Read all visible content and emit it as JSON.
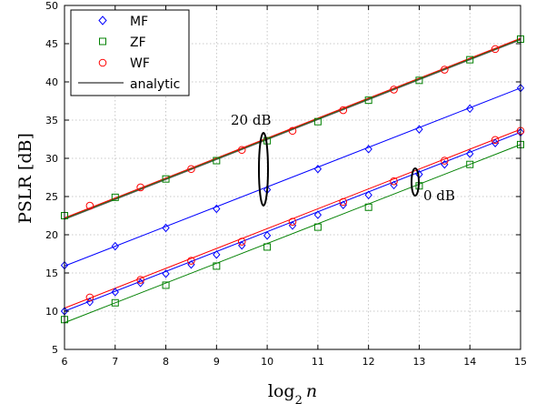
{
  "chart_data": {
    "type": "line",
    "title": "",
    "xlabel": "log₂ n",
    "xlabel_base": "log",
    "xlabel_sub": "2",
    "xlabel_var": "n",
    "ylabel": "PSLR [dB]",
    "xlim": [
      6,
      15
    ],
    "ylim": [
      5,
      50
    ],
    "xticks": [
      6,
      7,
      8,
      9,
      10,
      11,
      12,
      13,
      14,
      15
    ],
    "yticks": [
      5,
      10,
      15,
      20,
      25,
      30,
      35,
      40,
      45,
      50
    ],
    "grid": true,
    "legend_position": "top-left",
    "legend": [
      {
        "label": "MF",
        "color": "#0000ff",
        "marker": "diamond"
      },
      {
        "label": "ZF",
        "color": "#008000",
        "marker": "square"
      },
      {
        "label": "WF",
        "color": "#ff0000",
        "marker": "circle"
      },
      {
        "label": "analytic",
        "color": "#000000",
        "marker": "line"
      }
    ],
    "annotations": [
      {
        "text": "20 dB",
        "x": 9.5,
        "y": 36.5
      },
      {
        "text": "0 dB",
        "x": 13.4,
        "y": 25.0
      }
    ],
    "series": [
      {
        "group": "20 dB",
        "estimator": "MF",
        "color": "#0000ff",
        "marker": "diamond",
        "x": [
          6,
          7,
          8,
          9,
          10,
          11,
          12,
          13,
          14,
          15
        ],
        "y": [
          16.0,
          18.5,
          20.9,
          23.4,
          25.9,
          28.6,
          31.2,
          33.8,
          36.5,
          39.2
        ]
      },
      {
        "group": "20 dB",
        "estimator": "ZF",
        "color": "#008000",
        "marker": "square",
        "x": [
          6,
          7,
          8,
          9,
          10,
          11,
          12,
          13,
          14,
          15
        ],
        "y": [
          22.5,
          24.9,
          27.3,
          29.7,
          32.3,
          34.8,
          37.6,
          40.2,
          42.9,
          45.6
        ]
      },
      {
        "group": "20 dB",
        "estimator": "WF",
        "color": "#ff0000",
        "marker": "circle",
        "x": [
          6.5,
          7.5,
          8.5,
          9.5,
          10.5,
          11.5,
          12.5,
          13.5,
          14.5
        ],
        "y": [
          23.8,
          26.2,
          28.6,
          31.1,
          33.6,
          36.3,
          39.0,
          41.6,
          44.3
        ]
      },
      {
        "group": "0 dB",
        "estimator": "MF",
        "color": "#0000ff",
        "marker": "diamond",
        "x": [
          6,
          6.5,
          7,
          7.5,
          8,
          8.5,
          9,
          9.5,
          10,
          10.5,
          11,
          11.5,
          12,
          12.5,
          13,
          13.5,
          14,
          14.5,
          15
        ],
        "y": [
          10.0,
          11.2,
          12.5,
          13.7,
          14.9,
          16.1,
          17.4,
          18.6,
          19.9,
          21.2,
          22.6,
          23.9,
          25.2,
          26.5,
          27.9,
          29.2,
          30.6,
          32.0,
          33.4
        ]
      },
      {
        "group": "0 dB",
        "estimator": "ZF",
        "color": "#008000",
        "marker": "square",
        "x": [
          6,
          7,
          8,
          9,
          10,
          11,
          12,
          13,
          14,
          15
        ],
        "y": [
          8.9,
          11.1,
          13.4,
          15.9,
          18.4,
          21.0,
          23.6,
          26.4,
          29.2,
          31.8
        ]
      },
      {
        "group": "0 dB",
        "estimator": "WF",
        "color": "#ff0000",
        "marker": "circle",
        "x": [
          6.5,
          7.5,
          8.5,
          9.5,
          10.5,
          11.5,
          12.5,
          13.5,
          14.5,
          15
        ],
        "y": [
          11.8,
          14.1,
          16.6,
          19.1,
          21.7,
          24.3,
          27.0,
          29.7,
          32.4,
          33.6
        ]
      }
    ],
    "analytic_lines": [
      {
        "group": "20 dB",
        "estimator": "MF",
        "color": "#0000ff",
        "x": [
          6,
          15
        ],
        "y": [
          15.9,
          39.2
        ]
      },
      {
        "group": "20 dB",
        "estimator": "ZF",
        "color": "#008000",
        "x": [
          6,
          15
        ],
        "y": [
          22.1,
          45.6
        ]
      },
      {
        "group": "20 dB",
        "estimator": "WF",
        "color": "#ff0000",
        "x": [
          6,
          15
        ],
        "y": [
          22.2,
          45.7
        ]
      },
      {
        "group": "20 dB",
        "estimator": "analytic",
        "color": "#555555",
        "x": [
          6,
          15
        ],
        "y": [
          22.0,
          45.5
        ]
      },
      {
        "group": "0 dB",
        "estimator": "MF",
        "color": "#0000ff",
        "x": [
          6,
          15
        ],
        "y": [
          10.0,
          33.4
        ]
      },
      {
        "group": "0 dB",
        "estimator": "ZF",
        "color": "#008000",
        "x": [
          6,
          15
        ],
        "y": [
          8.5,
          31.8
        ]
      },
      {
        "group": "0 dB",
        "estimator": "WF",
        "color": "#ff0000",
        "x": [
          6,
          15
        ],
        "y": [
          10.4,
          33.8
        ]
      }
    ]
  }
}
